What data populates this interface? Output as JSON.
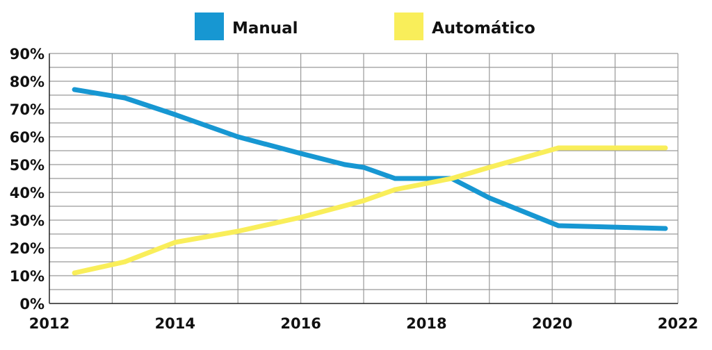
{
  "chart_data": {
    "type": "line",
    "title": "",
    "xlabel": "",
    "ylabel": "",
    "xlim": [
      2012,
      2022
    ],
    "ylim": [
      0,
      90
    ],
    "x_ticks": [
      2012,
      2014,
      2016,
      2018,
      2020,
      2022
    ],
    "x_tick_labels": [
      "2012",
      "2014",
      "2016",
      "2018",
      "2020",
      "2022"
    ],
    "y_ticks": [
      0,
      10,
      20,
      30,
      40,
      50,
      60,
      70,
      80,
      90
    ],
    "y_tick_labels": [
      "0%",
      "10%",
      "20%",
      "30%",
      "40%",
      "50%",
      "60%",
      "70%",
      "80%",
      "90%"
    ],
    "grid": true,
    "legend_position": "top-center",
    "series": [
      {
        "name": "Manual",
        "color": "#1797d2",
        "points": [
          {
            "x": 2012.4,
            "y": 77
          },
          {
            "x": 2013.2,
            "y": 74
          },
          {
            "x": 2014.0,
            "y": 68
          },
          {
            "x": 2015.0,
            "y": 60
          },
          {
            "x": 2016.0,
            "y": 54
          },
          {
            "x": 2016.7,
            "y": 50
          },
          {
            "x": 2017.0,
            "y": 49
          },
          {
            "x": 2017.5,
            "y": 45
          },
          {
            "x": 2018.4,
            "y": 45
          },
          {
            "x": 2019.0,
            "y": 38
          },
          {
            "x": 2020.1,
            "y": 28
          },
          {
            "x": 2021.8,
            "y": 27
          }
        ]
      },
      {
        "name": "Automático",
        "color": "#f9ee5a",
        "points": [
          {
            "x": 2012.4,
            "y": 11
          },
          {
            "x": 2013.2,
            "y": 15
          },
          {
            "x": 2014.0,
            "y": 22
          },
          {
            "x": 2015.0,
            "y": 26
          },
          {
            "x": 2016.0,
            "y": 31
          },
          {
            "x": 2017.0,
            "y": 37
          },
          {
            "x": 2017.5,
            "y": 41
          },
          {
            "x": 2018.4,
            "y": 45
          },
          {
            "x": 2019.0,
            "y": 49
          },
          {
            "x": 2020.1,
            "y": 56
          },
          {
            "x": 2021.8,
            "y": 56
          }
        ]
      }
    ]
  }
}
